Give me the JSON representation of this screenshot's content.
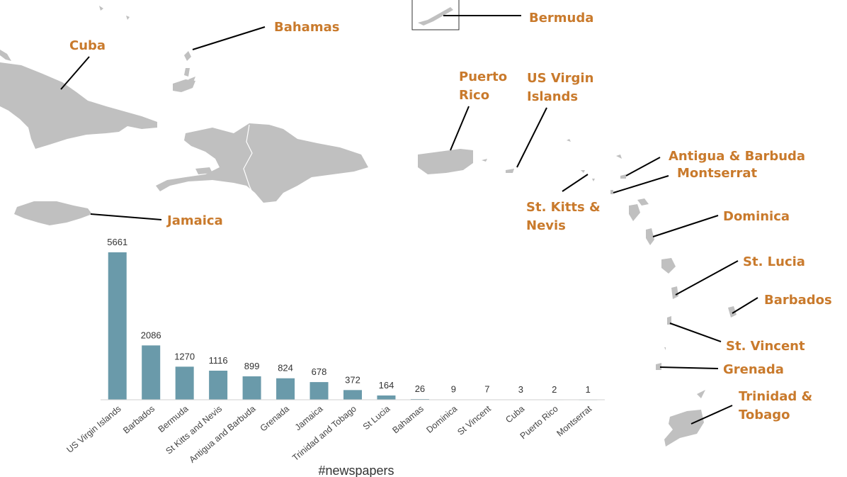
{
  "map": {
    "labels": {
      "cuba": "Cuba",
      "bahamas": "Bahamas",
      "bermuda": "Bermuda",
      "puerto_rico": [
        "Puerto",
        "Rico"
      ],
      "us_virgin_islands": [
        "US Virgin",
        "Islands"
      ],
      "antigua_barbuda": "Antigua & Barbuda",
      "montserrat": "Montserrat",
      "st_kitts_nevis": [
        "St. Kitts &",
        "Nevis"
      ],
      "dominica": "Dominica",
      "st_lucia": "St. Lucia",
      "barbados": "Barbados",
      "st_vincent": "St. Vincent",
      "grenada": "Grenada",
      "trinidad_tobago": [
        "Trinidad &",
        "Tobago"
      ],
      "jamaica": "Jamaica"
    },
    "colors": {
      "land": "#c0c0c0",
      "label": "#c97a2c",
      "leader": "#000000"
    }
  },
  "chart_data": {
    "type": "bar",
    "categories": [
      "US Virgin Islands",
      "Barbados",
      "Bermuda",
      "St Kitts and Nevis",
      "Antigua and Barbuda",
      "Grenada",
      "Jamaica",
      "Trinidad and Tobago",
      "St Lucia",
      "Bahamas",
      "Dominica",
      "St Vincent",
      "Cuba",
      "Puerto Rico",
      "Montserrat"
    ],
    "values": [
      5661,
      2086,
      1270,
      1116,
      899,
      824,
      678,
      372,
      164,
      26,
      9,
      7,
      3,
      2,
      1
    ],
    "title": "",
    "xlabel": "#newspapers",
    "ylabel": "",
    "ylim": [
      0,
      5661
    ],
    "grid": false,
    "bar_color": "#6a9aaa"
  }
}
